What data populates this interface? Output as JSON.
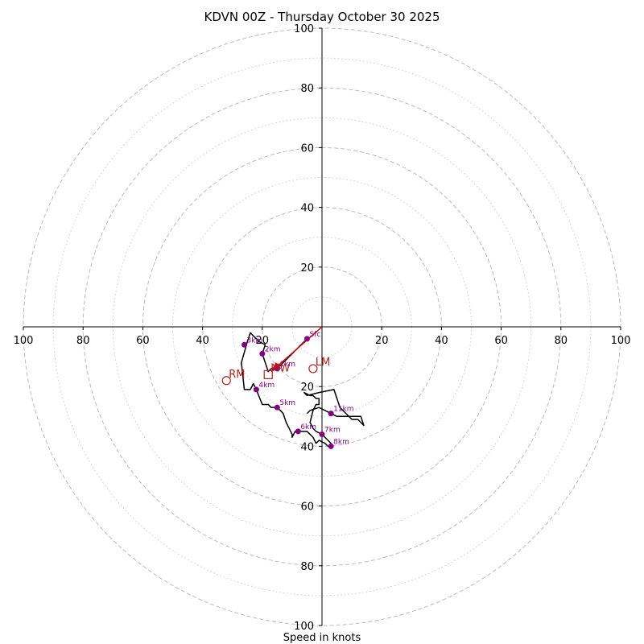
{
  "chart_data": {
    "type": "hodograph",
    "title": "KDVN 00Z - Thursday October 30 2025",
    "xlabel": "Speed in knots",
    "ring_max": 100,
    "major_rings": [
      20,
      40,
      60,
      80,
      100
    ],
    "minor_rings": [
      10,
      30,
      50,
      70,
      90
    ],
    "tick_labels": {
      "x_left": [
        "100",
        "80",
        "60",
        "40",
        "20"
      ],
      "x_right": [
        "20",
        "40",
        "60",
        "80",
        "100"
      ],
      "y_up": [
        "20",
        "40",
        "60",
        "80",
        "100"
      ],
      "y_down": [
        "20",
        "40",
        "60",
        "80",
        "100"
      ]
    },
    "trace_units": "knots (u east, v north)",
    "trace": [
      [
        -5,
        -4
      ],
      [
        -10,
        -9
      ],
      [
        -14,
        -13
      ],
      [
        -17,
        -14
      ],
      [
        -18,
        -15
      ],
      [
        -19,
        -12
      ],
      [
        -20,
        -9
      ],
      [
        -19,
        -6
      ],
      [
        -21,
        -5
      ],
      [
        -24,
        -2
      ],
      [
        -25,
        -5
      ],
      [
        -27,
        -12
      ],
      [
        -26,
        -21
      ],
      [
        -24,
        -21
      ],
      [
        -23,
        -19
      ],
      [
        -22,
        -21
      ],
      [
        -20,
        -26
      ],
      [
        -18,
        -26
      ],
      [
        -17,
        -27
      ],
      [
        -15,
        -27
      ],
      [
        -13,
        -29
      ],
      [
        -12,
        -32
      ],
      [
        -10,
        -36
      ],
      [
        -10,
        -37
      ],
      [
        -9,
        -35
      ],
      [
        -8,
        -35
      ],
      [
        -6,
        -35
      ],
      [
        -5,
        -35
      ],
      [
        -4,
        -36
      ],
      [
        -3,
        -37
      ],
      [
        -2,
        -39
      ],
      [
        -1,
        -38
      ],
      [
        1,
        -39
      ],
      [
        2,
        -40
      ],
      [
        3,
        -40
      ],
      [
        3,
        -39
      ],
      [
        2,
        -38
      ],
      [
        0,
        -36
      ],
      [
        -2,
        -35
      ],
      [
        -3,
        -34
      ],
      [
        -4,
        -32
      ],
      [
        -3,
        -28
      ],
      [
        -2,
        -26
      ],
      [
        -1,
        -26
      ],
      [
        -1,
        -24
      ],
      [
        -2,
        -24
      ],
      [
        -3,
        -23
      ],
      [
        -4,
        -23
      ],
      [
        -6,
        -22
      ],
      [
        -5,
        -23
      ],
      [
        -1,
        -22
      ],
      [
        4,
        -21
      ],
      [
        5,
        -24
      ],
      [
        6,
        -27
      ],
      [
        8,
        -29
      ],
      [
        10,
        -31
      ],
      [
        12,
        -31
      ],
      [
        13,
        -32
      ],
      [
        14,
        -33
      ],
      [
        13,
        -30
      ],
      [
        10,
        -30
      ],
      [
        5,
        -30
      ],
      [
        -1,
        -27
      ],
      [
        -4,
        -28
      ],
      [
        -5,
        -29
      ]
    ],
    "height_markers": [
      {
        "label": "Sfc",
        "u": -5,
        "v": -4
      },
      {
        "label": "1km",
        "u": -15,
        "v": -14
      },
      {
        "label": "2km",
        "u": -20,
        "v": -9
      },
      {
        "label": "3km",
        "u": -26,
        "v": -6
      },
      {
        "label": "4km",
        "u": -22,
        "v": -21
      },
      {
        "label": "5km",
        "u": -15,
        "v": -27
      },
      {
        "label": "6km",
        "u": -8,
        "v": -35
      },
      {
        "label": "7km",
        "u": 0,
        "v": -36
      },
      {
        "label": "8km",
        "u": 3,
        "v": -40
      },
      {
        "label": "11km",
        "u": 3,
        "v": -29
      }
    ],
    "shear_vector": {
      "from": [
        0,
        0
      ],
      "to": [
        -17,
        -15
      ]
    },
    "storm_motions": [
      {
        "label": "RM",
        "u": -32,
        "v": -18,
        "marker": "circle"
      },
      {
        "label": "LM",
        "u": -3,
        "v": -14,
        "marker": "circle"
      },
      {
        "label": "MW",
        "u": -18,
        "v": -16,
        "marker": "square"
      }
    ],
    "colors": {
      "trace": "#000000",
      "markers": "#800080",
      "storm": "#b22222",
      "shear": "#dd0000",
      "grid": "#bbbbbb",
      "minor_grid": "#cccccc"
    }
  }
}
